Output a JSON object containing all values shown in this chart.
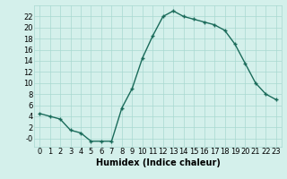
{
  "x": [
    0,
    1,
    2,
    3,
    4,
    5,
    6,
    7,
    8,
    9,
    10,
    11,
    12,
    13,
    14,
    15,
    16,
    17,
    18,
    19,
    20,
    21,
    22,
    23
  ],
  "y": [
    4.5,
    4.0,
    3.5,
    1.5,
    1.0,
    -0.5,
    -0.5,
    -0.5,
    5.5,
    9.0,
    14.5,
    18.5,
    22.0,
    23.0,
    22.0,
    21.5,
    21.0,
    20.5,
    19.5,
    17.0,
    13.5,
    10.0,
    8.0,
    7.0
  ],
  "line_color": "#1a6b5a",
  "marker": "+",
  "marker_size": 3,
  "marker_linewidth": 1.0,
  "line_width": 1.0,
  "bg_color": "#d4f0eb",
  "grid_color": "#a8d8d0",
  "xlabel": "Humidex (Indice chaleur)",
  "xlabel_fontsize": 7,
  "xlabel_fontweight": "bold",
  "tick_fontsize": 6,
  "ylim": [
    -1.5,
    24
  ],
  "xlim": [
    -0.5,
    23.5
  ],
  "yticks": [
    0,
    2,
    4,
    6,
    8,
    10,
    12,
    14,
    16,
    18,
    20,
    22
  ],
  "ytick_labels": [
    "-0",
    "2",
    "4",
    "6",
    "8",
    "10",
    "12",
    "14",
    "16",
    "18",
    "20",
    "22"
  ],
  "xticks": [
    0,
    1,
    2,
    3,
    4,
    5,
    6,
    7,
    8,
    9,
    10,
    11,
    12,
    13,
    14,
    15,
    16,
    17,
    18,
    19,
    20,
    21,
    22,
    23
  ]
}
